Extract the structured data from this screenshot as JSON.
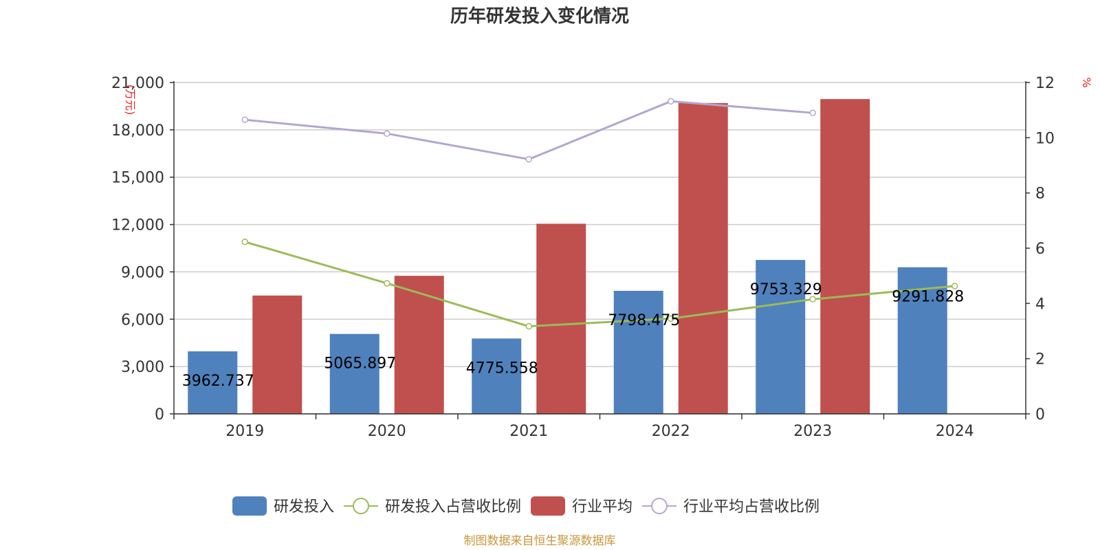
{
  "chart_data": {
    "type": "bar",
    "title": "历年研发投入变化情况",
    "categories": [
      "2019",
      "2020",
      "2021",
      "2022",
      "2023",
      "2024"
    ],
    "left_axis": {
      "unit_label": "(万元)",
      "range": [
        0,
        21000
      ],
      "ticks": [
        "0",
        "3,000",
        "6,000",
        "9,000",
        "12,000",
        "15,000",
        "18,000",
        "21,000"
      ],
      "tick_values": [
        0,
        3000,
        6000,
        9000,
        12000,
        15000,
        18000,
        21000
      ]
    },
    "right_axis": {
      "unit_label": "%",
      "range": [
        0,
        12
      ],
      "ticks": [
        "0",
        "2",
        "4",
        "6",
        "8",
        "10",
        "12"
      ],
      "tick_values": [
        0,
        2,
        4,
        6,
        8,
        10,
        12
      ]
    },
    "series": [
      {
        "name": "研发投入",
        "kind": "bar",
        "axis": "left",
        "color": "#4f81bd",
        "values": [
          3962.737,
          5065.897,
          4775.558,
          7798.475,
          9753.329,
          9291.828
        ],
        "labels": [
          "3962.737",
          "5065.897",
          "4775.558",
          "7798.475",
          "9753.329",
          "9291.828"
        ]
      },
      {
        "name": "研发投入占营收比例",
        "kind": "line",
        "axis": "right",
        "color": "#9bbb59",
        "values": [
          6.23,
          4.73,
          3.17,
          3.45,
          4.15,
          4.63
        ]
      },
      {
        "name": "行业平均",
        "kind": "bar",
        "axis": "left",
        "color": "#c0504d",
        "values": [
          7500,
          8750,
          12050,
          19700,
          19950,
          null
        ]
      },
      {
        "name": "行业平均占营收比例",
        "kind": "line",
        "axis": "right",
        "color": "#b3a6cf",
        "values": [
          10.65,
          10.15,
          9.22,
          11.32,
          10.9,
          null
        ]
      }
    ],
    "source_note": "制图数据来自恒生聚源数据库"
  }
}
